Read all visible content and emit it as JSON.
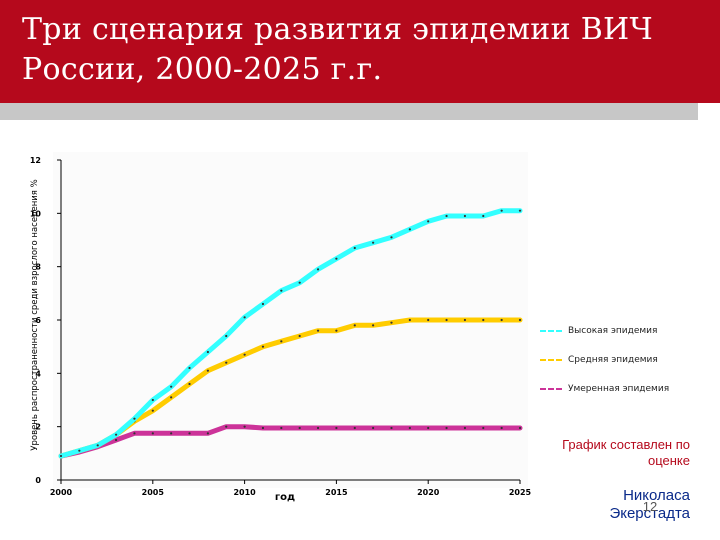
{
  "slide": {
    "title": "Три сценария развития эпидемии ВИЧ\nРоссии, 2000-2025 г.г.",
    "note": "График составлен по оценке",
    "author": "Николаса Экерстадта",
    "page_number": "12"
  },
  "colors": {
    "title_bar": "#b5091c",
    "high": "#33ffff",
    "medium": "#ffcc00",
    "moderate": "#cc3399"
  },
  "chart_data": {
    "type": "line",
    "xlabel": "год",
    "ylabel": "Уровень распространенности среди взрослого населения %",
    "xlim": [
      2000,
      2025
    ],
    "ylim": [
      0,
      12
    ],
    "x_ticks": [
      2000,
      2005,
      2010,
      2015,
      2020,
      2025
    ],
    "y_ticks": [
      0,
      2,
      4,
      6,
      8,
      10,
      12
    ],
    "grid": false,
    "legend_position": "right",
    "x": [
      2000,
      2001,
      2002,
      2003,
      2004,
      2005,
      2006,
      2007,
      2008,
      2009,
      2010,
      2011,
      2012,
      2013,
      2014,
      2015,
      2016,
      2017,
      2018,
      2019,
      2020,
      2021,
      2022,
      2023,
      2024,
      2025
    ],
    "series": [
      {
        "name": "Высокая эпидемия",
        "color": "#33ffff",
        "values": [
          0.9,
          1.1,
          1.3,
          1.7,
          2.3,
          3.0,
          3.5,
          4.2,
          4.8,
          5.4,
          6.1,
          6.6,
          7.1,
          7.4,
          7.9,
          8.3,
          8.7,
          8.9,
          9.1,
          9.4,
          9.7,
          9.9,
          9.9,
          9.9,
          10.1,
          10.1
        ]
      },
      {
        "name": "Средняя эпидемия",
        "color": "#ffcc00",
        "values": [
          0.9,
          1.1,
          1.3,
          1.7,
          2.2,
          2.6,
          3.1,
          3.6,
          4.1,
          4.4,
          4.7,
          5.0,
          5.2,
          5.4,
          5.6,
          5.6,
          5.8,
          5.8,
          5.9,
          6.0,
          6.0,
          6.0,
          6.0,
          6.0,
          6.0,
          6.0
        ]
      },
      {
        "name": "Умеренная эпидемия",
        "color": "#cc3399",
        "values": [
          0.9,
          1.05,
          1.25,
          1.5,
          1.75,
          1.75,
          1.75,
          1.75,
          1.75,
          2.0,
          2.0,
          1.95,
          1.95,
          1.95,
          1.95,
          1.95,
          1.95,
          1.95,
          1.95,
          1.95,
          1.95,
          1.95,
          1.95,
          1.95,
          1.95,
          1.95
        ]
      }
    ]
  }
}
